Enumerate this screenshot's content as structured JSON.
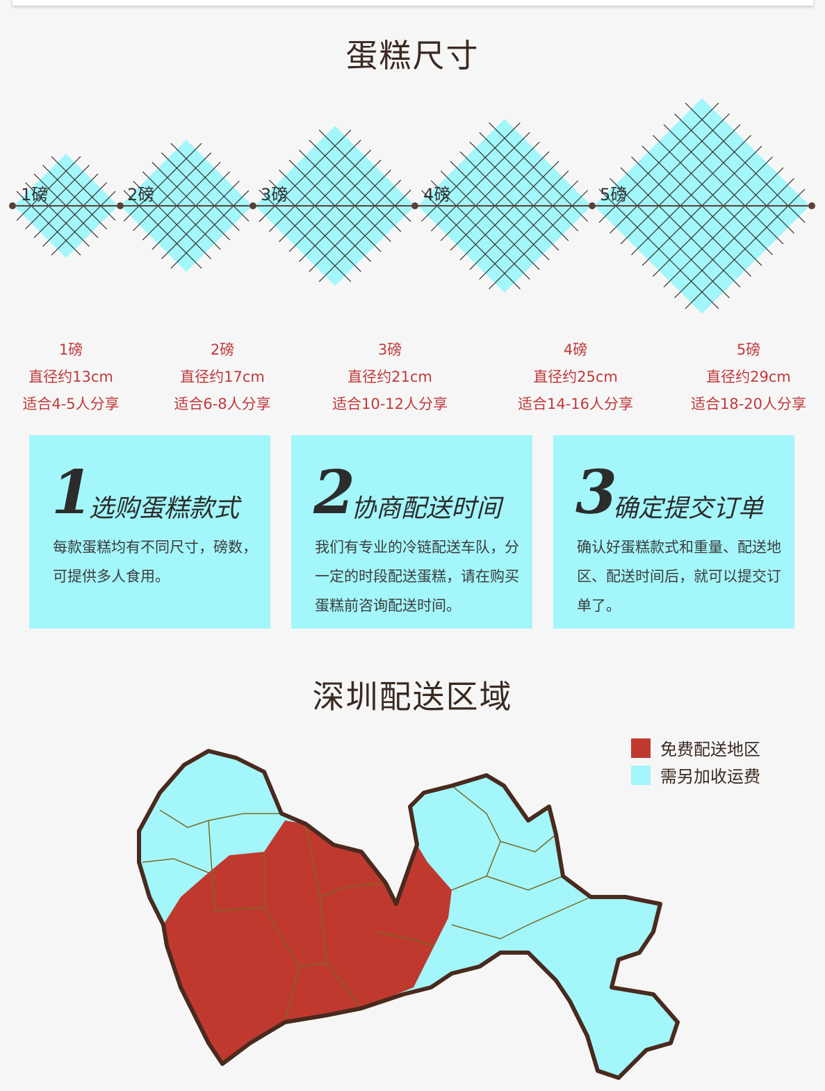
{
  "section_size": {
    "title": "蛋糕尺寸"
  },
  "sizes": [
    {
      "label": "1磅",
      "weight": "1磅",
      "diameter": "直径约13cm",
      "serves": "适合4-5人分享"
    },
    {
      "label": "2磅",
      "weight": "2磅",
      "diameter": "直径约17cm",
      "serves": "适合6-8人分享"
    },
    {
      "label": "3磅",
      "weight": "3磅",
      "diameter": "直径约21cm",
      "serves": "适合10-12人分享"
    },
    {
      "label": "4磅",
      "weight": "4磅",
      "diameter": "直径约25cm",
      "serves": "适合14-16人分享"
    },
    {
      "label": "5磅",
      "weight": "5磅",
      "diameter": "直径约29cm",
      "serves": "适合18-20人分享"
    }
  ],
  "steps": [
    {
      "number": "1",
      "title": "选购蛋糕款式",
      "text": "每款蛋糕均有不同尺寸，磅数，可提供多人食用。"
    },
    {
      "number": "2",
      "title": "协商配送时间",
      "text": "我们有专业的冷链配送车队，分一定的时段配送蛋糕，请在购买蛋糕前咨询配送时间。"
    },
    {
      "number": "3",
      "title": "确定提交订单",
      "text": "确认好蛋糕款式和重量、配送地区、配送时间后，就可以提交订单了。"
    }
  ],
  "section_area": {
    "title": "深圳配送区域"
  },
  "legend": [
    {
      "label": "免费配送地区",
      "color": "#c0392f"
    },
    {
      "label": "需另加收运费",
      "color": "#a3f6fa"
    }
  ],
  "colors": {
    "accent_text": "#c0393b",
    "cyan": "#a3f6fa",
    "outline": "#4a2a1e"
  }
}
